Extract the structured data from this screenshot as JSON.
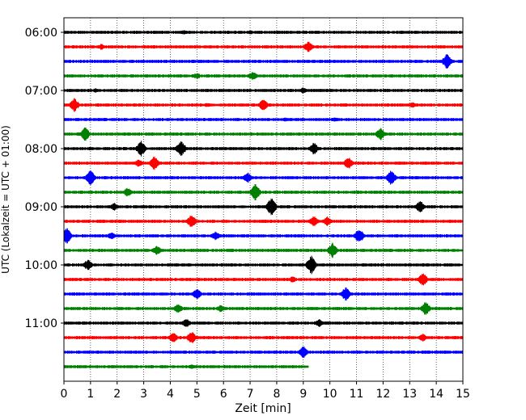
{
  "chart_data": {
    "type": "line",
    "title": "",
    "xlabel": "Zeit  [min]",
    "ylabel": "UTC (Lokalzeit = UTC + 01:00)",
    "xlim": [
      0,
      15
    ],
    "x_ticks": [
      "0",
      "1",
      "2",
      "3",
      "4",
      "5",
      "6",
      "7",
      "8",
      "9",
      "10",
      "11",
      "12",
      "13",
      "14",
      "15"
    ],
    "y_ticks": [
      {
        "label": "06:00",
        "trace": 0
      },
      {
        "label": "07:00",
        "trace": 4
      },
      {
        "label": "08:00",
        "trace": 8
      },
      {
        "label": "09:00",
        "trace": 12
      },
      {
        "label": "10:00",
        "trace": 16
      },
      {
        "label": "11:00",
        "trace": 20
      }
    ],
    "grid": "vertical-dotted",
    "trace_colors": [
      "#000000",
      "#ff0000",
      "#0000ff",
      "#008000"
    ],
    "trace_count": 24,
    "last_trace_end_minute": 9.2,
    "traces": [
      {
        "events": [
          [
            4.5,
            3
          ],
          [
            7.0,
            3
          ]
        ]
      },
      {
        "events": [
          [
            1.4,
            4
          ],
          [
            9.2,
            7
          ]
        ]
      },
      {
        "events": [
          [
            14.4,
            10
          ]
        ]
      },
      {
        "events": [
          [
            5.0,
            4
          ],
          [
            7.1,
            6
          ]
        ]
      },
      {
        "events": [
          [
            1.2,
            3
          ],
          [
            9.0,
            4
          ]
        ]
      },
      {
        "events": [
          [
            0.4,
            9
          ],
          [
            5.4,
            3
          ],
          [
            7.5,
            8
          ],
          [
            13.1,
            4
          ]
        ]
      },
      {
        "events": [
          [
            8.3,
            3
          ],
          [
            10.2,
            3
          ]
        ]
      },
      {
        "events": [
          [
            0.8,
            9
          ],
          [
            11.9,
            8
          ]
        ]
      },
      {
        "events": [
          [
            2.9,
            10
          ],
          [
            4.4,
            11
          ],
          [
            9.4,
            8
          ]
        ]
      },
      {
        "events": [
          [
            2.8,
            5
          ],
          [
            3.4,
            9
          ],
          [
            10.7,
            8
          ]
        ]
      },
      {
        "events": [
          [
            1.0,
            10
          ],
          [
            6.9,
            7
          ],
          [
            12.3,
            10
          ]
        ]
      },
      {
        "events": [
          [
            2.4,
            6
          ],
          [
            7.2,
            11
          ]
        ]
      },
      {
        "events": [
          [
            1.9,
            5
          ],
          [
            7.8,
            12
          ],
          [
            13.4,
            8
          ]
        ]
      },
      {
        "events": [
          [
            4.8,
            9
          ],
          [
            9.4,
            7
          ],
          [
            9.9,
            6
          ]
        ]
      },
      {
        "events": [
          [
            0.1,
            11
          ],
          [
            1.8,
            5
          ],
          [
            5.7,
            6
          ],
          [
            11.1,
            10
          ]
        ]
      },
      {
        "events": [
          [
            3.5,
            6
          ],
          [
            10.1,
            10
          ]
        ]
      },
      {
        "events": [
          [
            0.9,
            7
          ],
          [
            9.3,
            12
          ]
        ]
      },
      {
        "events": [
          [
            8.6,
            4
          ],
          [
            13.5,
            9
          ]
        ]
      },
      {
        "events": [
          [
            5.0,
            7
          ],
          [
            10.6,
            9
          ]
        ]
      },
      {
        "events": [
          [
            4.3,
            6
          ],
          [
            5.9,
            5
          ],
          [
            13.6,
            9
          ]
        ]
      },
      {
        "events": [
          [
            4.6,
            6
          ],
          [
            9.6,
            5
          ]
        ]
      },
      {
        "events": [
          [
            4.1,
            7
          ],
          [
            4.8,
            8
          ],
          [
            13.5,
            5
          ]
        ]
      },
      {
        "events": [
          [
            9.0,
            8
          ]
        ]
      },
      {
        "events": [
          [
            4.8,
            3
          ]
        ]
      }
    ]
  }
}
